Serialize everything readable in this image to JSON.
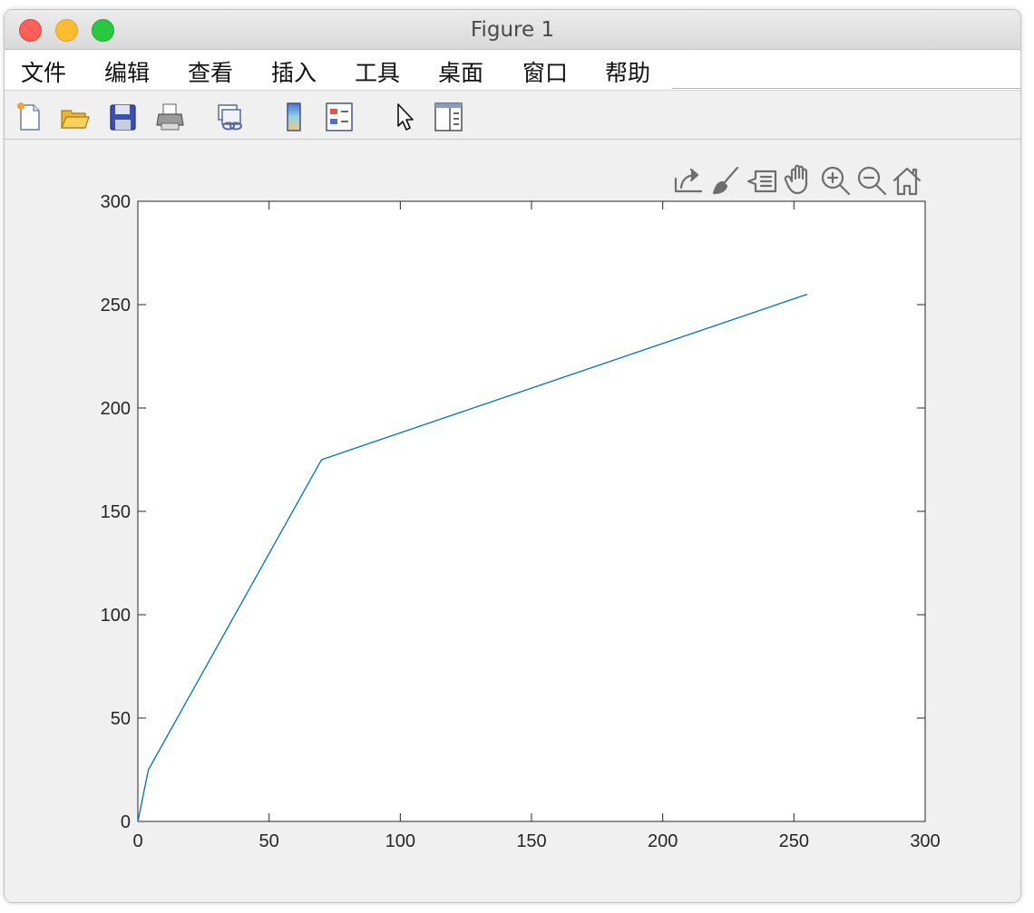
{
  "window": {
    "title": "Figure 1"
  },
  "menu": {
    "items": [
      "文件",
      "编辑",
      "查看",
      "插入",
      "工具",
      "桌面",
      "窗口",
      "帮助"
    ]
  },
  "toolbar": {
    "buttons": [
      "new-figure-icon",
      "open-file-icon",
      "save-icon",
      "print-icon",
      "link-plot-icon",
      "colorbar-icon",
      "legend-icon",
      "edit-plot-arrow-icon",
      "property-inspector-icon"
    ]
  },
  "axes_toolbar": {
    "buttons": [
      "export-icon",
      "brush-icon",
      "data-tip-icon",
      "pan-icon",
      "zoom-in-icon",
      "zoom-out-icon",
      "home-icon"
    ]
  },
  "colors": {
    "line": "#0072bd",
    "axis": "#262626"
  },
  "chart_data": {
    "type": "line",
    "xlim": [
      0,
      300
    ],
    "ylim": [
      0,
      300
    ],
    "x_ticks": [
      0,
      50,
      100,
      150,
      200,
      250,
      300
    ],
    "y_ticks": [
      0,
      50,
      100,
      150,
      200,
      250,
      300
    ],
    "x_tick_labels": [
      "0",
      "50",
      "100",
      "150",
      "200",
      "250",
      "300"
    ],
    "y_tick_labels": [
      "0",
      "50",
      "100",
      "150",
      "200",
      "250",
      "300"
    ],
    "grid": false,
    "series": [
      {
        "x": [
          0,
          4,
          70,
          255
        ],
        "y": [
          0,
          25,
          175,
          255
        ]
      }
    ]
  }
}
